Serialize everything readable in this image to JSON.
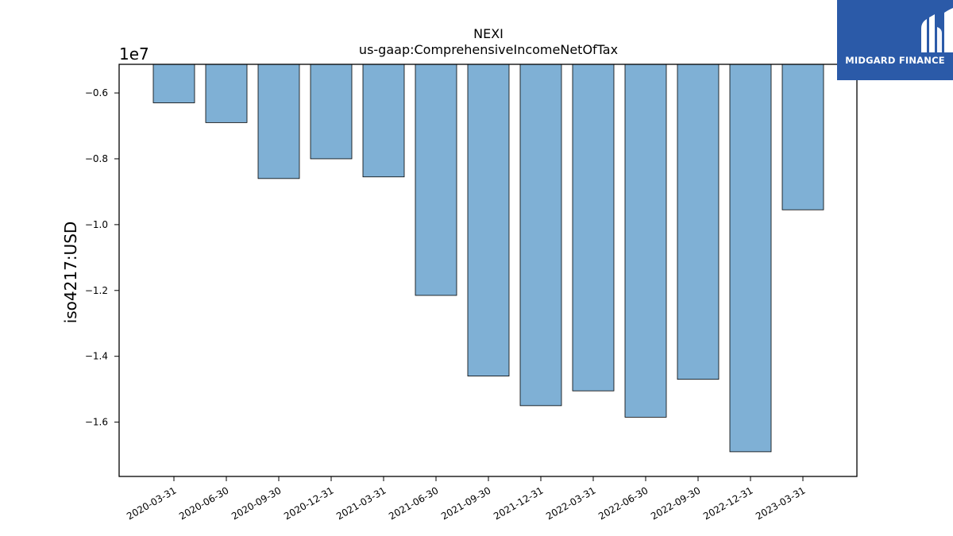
{
  "chart_data": {
    "type": "bar",
    "title": "NEXI",
    "subtitle": "us-gaap:ComprehensiveIncomeNetOfTax",
    "xlabel": "",
    "ylabel": "iso4217:USD",
    "scale_label": "1e7",
    "scale": 10000000,
    "categories": [
      "2020-03-31",
      "2020-06-30",
      "2020-09-30",
      "2020-12-31",
      "2021-03-31",
      "2021-06-30",
      "2021-09-30",
      "2021-12-31",
      "2022-03-31",
      "2022-06-30",
      "2022-09-30",
      "2022-12-31",
      "2023-03-31"
    ],
    "values": [
      -6300000,
      -6900000,
      -8600000,
      -8000000,
      -8550000,
      -12150000,
      -14600000,
      -15500000,
      -15050000,
      -15850000,
      -14700000,
      -16900000,
      -9550000
    ],
    "ylim": [
      -17650000,
      -5130000
    ],
    "yticks": [
      -6000000,
      -8000000,
      -10000000,
      -12000000,
      -14000000,
      -16000000
    ],
    "ytick_labels": [
      "−0.6",
      "−0.8",
      "−1.0",
      "−1.2",
      "−1.4",
      "−1.6"
    ],
    "bar_color": "#7fb0d5",
    "grid": false,
    "legend": "none"
  },
  "logo": {
    "text": "MIDGARD FINANCE",
    "background": "#2b5aa8"
  }
}
